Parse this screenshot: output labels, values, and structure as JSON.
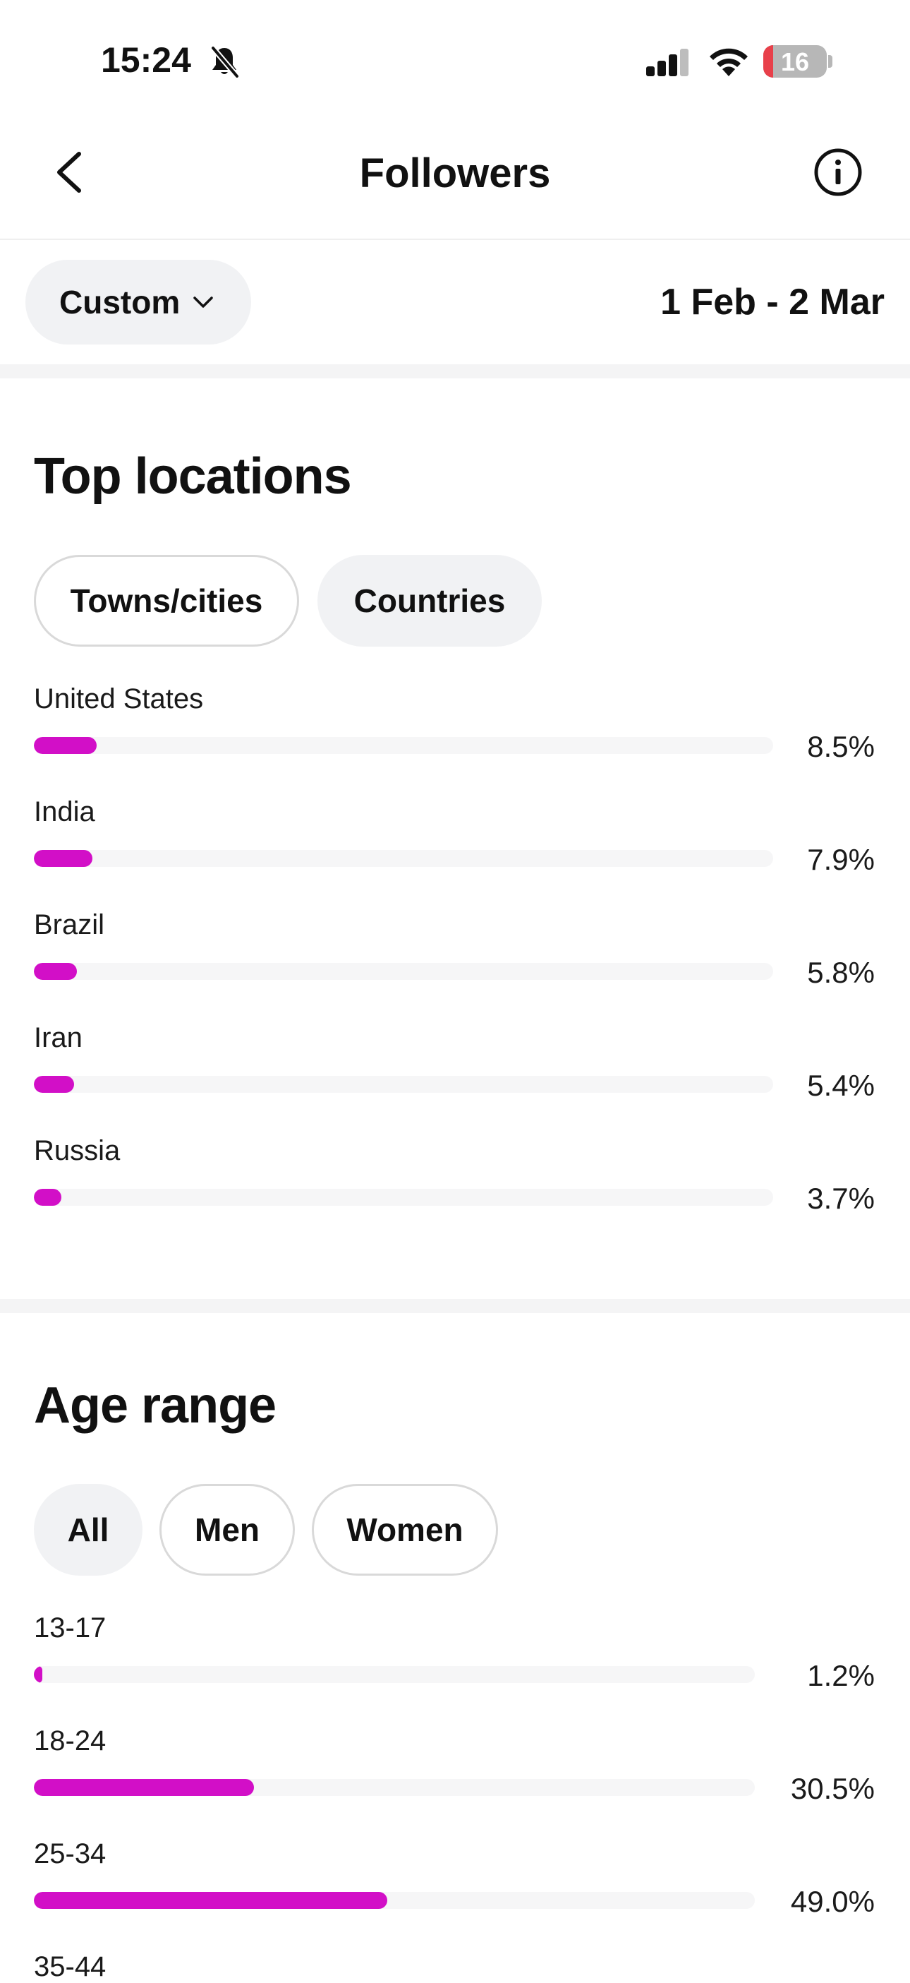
{
  "status_bar": {
    "time": "15:24",
    "battery_level": "16",
    "battery_fraction": 0.16,
    "icons": [
      "bell-slash-icon",
      "cellular-signal-icon",
      "wifi-icon",
      "battery-icon"
    ]
  },
  "header": {
    "title": "Followers",
    "back_icon": "chevron-left-icon",
    "info_icon": "info-circle-icon"
  },
  "filter": {
    "range_label": "Custom",
    "date_range": "1 Feb - 2 Mar"
  },
  "top_locations": {
    "title": "Top locations",
    "tabs": [
      {
        "label": "Towns/cities",
        "selected": false
      },
      {
        "label": "Countries",
        "selected": true
      }
    ],
    "rows": [
      {
        "label": "United States",
        "value": "8.5%",
        "percent": 8.5
      },
      {
        "label": "India",
        "value": "7.9%",
        "percent": 7.9
      },
      {
        "label": "Brazil",
        "value": "5.8%",
        "percent": 5.8
      },
      {
        "label": "Iran",
        "value": "5.4%",
        "percent": 5.4
      },
      {
        "label": "Russia",
        "value": "3.7%",
        "percent": 3.7
      }
    ]
  },
  "age_range": {
    "title": "Age range",
    "tabs": [
      {
        "label": "All",
        "selected": true
      },
      {
        "label": "Men",
        "selected": false
      },
      {
        "label": "Women",
        "selected": false
      }
    ],
    "rows": [
      {
        "label": "13-17",
        "value": "1.2%",
        "percent": 1.2
      },
      {
        "label": "18-24",
        "value": "30.5%",
        "percent": 30.5
      },
      {
        "label": "25-34",
        "value": "49.0%",
        "percent": 49.0
      },
      {
        "label": "35-44",
        "value": "",
        "percent": null
      }
    ]
  },
  "colors": {
    "accent": "#d20fc7",
    "track": "#f6f6f7",
    "pill_selected": "#f1f2f4",
    "pill_border": "#d9d9d9",
    "battery_low": "#e8404a"
  }
}
